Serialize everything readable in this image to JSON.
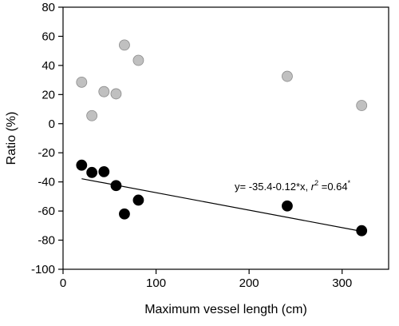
{
  "chart_data": {
    "type": "scatter",
    "title": "",
    "xlabel": "Maximum vessel length (cm)",
    "ylabel": "Ratio (%)",
    "xlim": [
      0,
      350
    ],
    "ylim": [
      -100,
      80
    ],
    "xticks": [
      0,
      100,
      200,
      300
    ],
    "yticks": [
      -100,
      -80,
      -60,
      -40,
      -20,
      0,
      20,
      40,
      60,
      80
    ],
    "grid": false,
    "series": [
      {
        "color": "#c0c0c0",
        "points": [
          {
            "x": 20,
            "y": 28.5
          },
          {
            "x": 31,
            "y": 5.5
          },
          {
            "x": 44,
            "y": 22
          },
          {
            "x": 57,
            "y": 20.5
          },
          {
            "x": 66,
            "y": 54
          },
          {
            "x": 81,
            "y": 43.5
          },
          {
            "x": 241,
            "y": 32.5
          },
          {
            "x": 321,
            "y": 12.5
          }
        ]
      },
      {
        "color": "#000000",
        "points": [
          {
            "x": 20,
            "y": -28.5
          },
          {
            "x": 31,
            "y": -33.5
          },
          {
            "x": 44,
            "y": -33
          },
          {
            "x": 57,
            "y": -42.5
          },
          {
            "x": 66,
            "y": -62
          },
          {
            "x": 81,
            "y": -52.5
          },
          {
            "x": 241,
            "y": -56.5
          },
          {
            "x": 321,
            "y": -73.5
          }
        ]
      }
    ],
    "regression": {
      "intercept": -35.4,
      "slope": -0.12,
      "x_range": [
        20,
        321
      ],
      "label_prefix": "y= -35.4-0.12*x, ",
      "label_r": "r",
      "label_r_sup": "2",
      "label_value": " =0.64",
      "label_star": "*"
    }
  }
}
